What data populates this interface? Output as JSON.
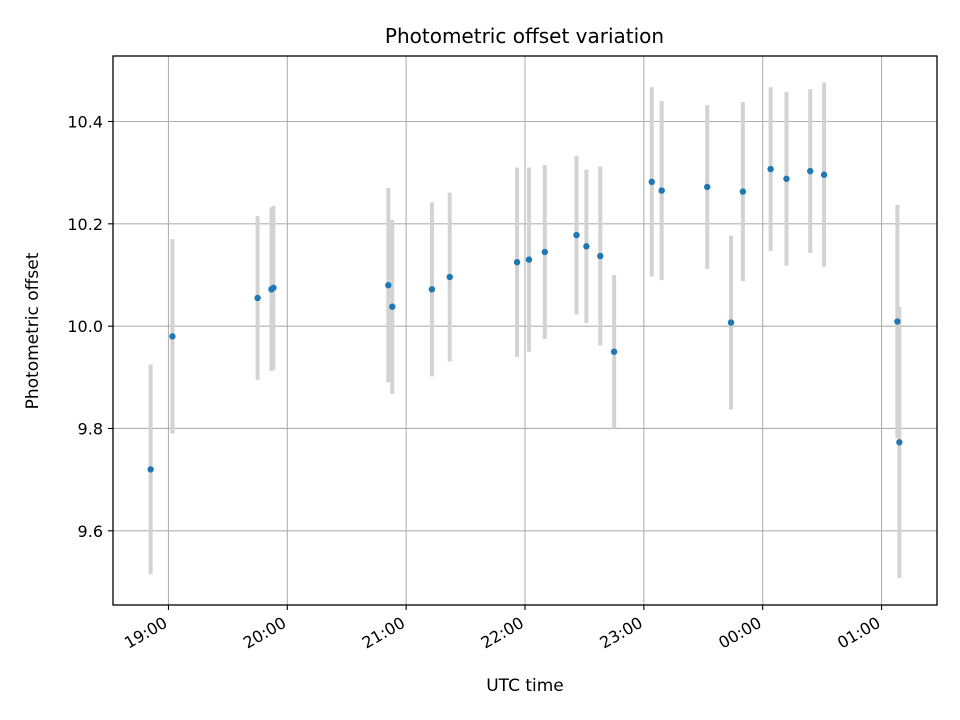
{
  "chart_data": {
    "type": "scatter",
    "title": "Photometric offset variation",
    "xlabel": "UTC time",
    "ylabel": "Photometric offset",
    "grid": true,
    "legend": "none",
    "x_axis": {
      "kind": "time",
      "range": [
        "18:32",
        "01:28"
      ],
      "ticks": [
        "19:00",
        "20:00",
        "21:00",
        "22:00",
        "23:00",
        "00:00",
        "01:00"
      ]
    },
    "y_axis": {
      "range": [
        9.455,
        10.528
      ],
      "ticks": [
        "9.6",
        "9.8",
        "10.0",
        "10.2",
        "10.4"
      ]
    },
    "colors": {
      "points": "#1f77b4",
      "error_bars": "#d3d3d3",
      "grid": "#b0b0b0"
    },
    "series": [
      {
        "points": [
          {
            "x": "18:51",
            "y": 9.72,
            "err": 0.205
          },
          {
            "x": "19:02",
            "y": 9.98,
            "err": 0.19
          },
          {
            "x": "19:45",
            "y": 10.055,
            "err": 0.16
          },
          {
            "x": "19:52",
            "y": 10.072,
            "err": 0.16
          },
          {
            "x": "19:53",
            "y": 10.075,
            "err": 0.16
          },
          {
            "x": "20:51",
            "y": 10.08,
            "err": 0.19
          },
          {
            "x": "20:53",
            "y": 10.038,
            "err": 0.17
          },
          {
            "x": "21:13",
            "y": 10.072,
            "err": 0.17
          },
          {
            "x": "21:22",
            "y": 10.096,
            "err": 0.165
          },
          {
            "x": "21:56",
            "y": 10.125,
            "err": 0.185
          },
          {
            "x": "22:02",
            "y": 10.13,
            "err": 0.18
          },
          {
            "x": "22:10",
            "y": 10.145,
            "err": 0.17
          },
          {
            "x": "22:26",
            "y": 10.178,
            "err": 0.155
          },
          {
            "x": "22:31",
            "y": 10.156,
            "err": 0.15
          },
          {
            "x": "22:38",
            "y": 10.137,
            "err": 0.175
          },
          {
            "x": "22:45",
            "y": 9.95,
            "err": 0.15
          },
          {
            "x": "23:04",
            "y": 10.282,
            "err": 0.185
          },
          {
            "x": "23:09",
            "y": 10.265,
            "err": 0.175
          },
          {
            "x": "23:32",
            "y": 10.272,
            "err": 0.16
          },
          {
            "x": "23:44",
            "y": 10.007,
            "err": 0.17
          },
          {
            "x": "23:50",
            "y": 10.263,
            "err": 0.175
          },
          {
            "x": "00:04",
            "y": 10.307,
            "err": 0.16
          },
          {
            "x": "00:12",
            "y": 10.288,
            "err": 0.17
          },
          {
            "x": "00:24",
            "y": 10.303,
            "err": 0.16
          },
          {
            "x": "00:31",
            "y": 10.296,
            "err": 0.18
          },
          {
            "x": "01:08",
            "y": 10.009,
            "err": 0.228
          },
          {
            "x": "01:09",
            "y": 9.773,
            "err": 0.265
          }
        ]
      }
    ]
  }
}
